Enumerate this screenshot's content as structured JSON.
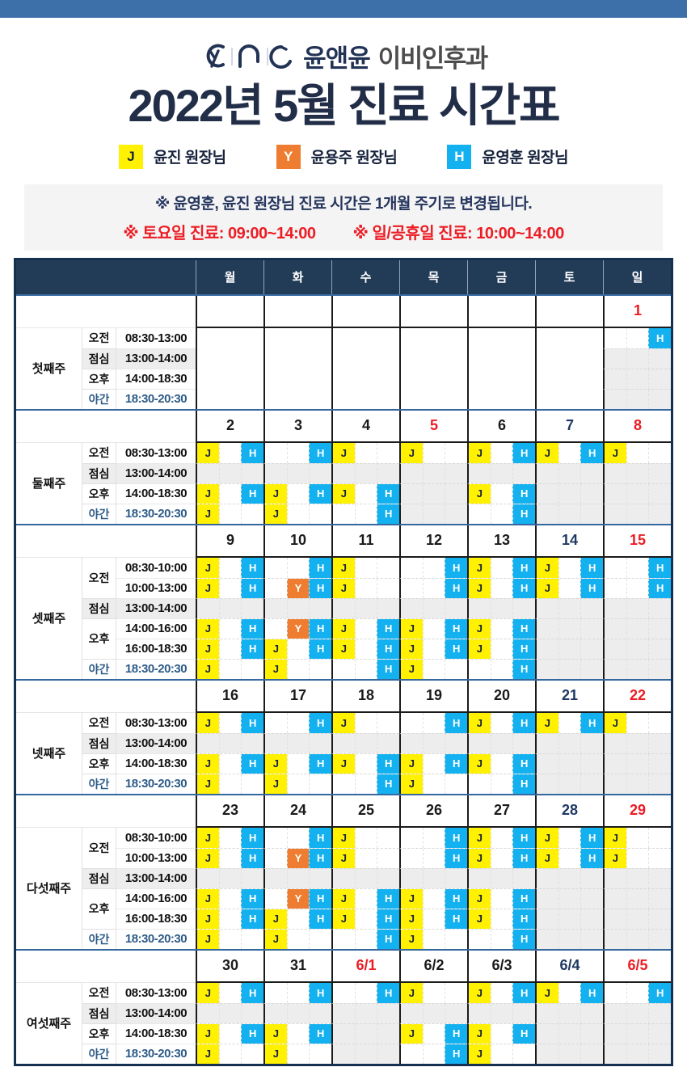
{
  "logo": {
    "name_primary": "윤앤윤",
    "name_secondary": "이비인후과"
  },
  "title": "2022년 5월 진료 시간표",
  "legend": {
    "items": [
      {
        "code": "J",
        "label": "윤진 원장님"
      },
      {
        "code": "Y",
        "label": "윤용주 원장님"
      },
      {
        "code": "H",
        "label": "윤영훈 원장님"
      }
    ]
  },
  "notice": {
    "line1": "※ 윤영훈, 윤진 원장님 진료 시간은 1개월 주기로 변경됩니다.",
    "line2a": "※ 토요일 진료: 09:00~14:00",
    "line2b": "※ 일/공휴일 진료: 10:00~14:00"
  },
  "colors": {
    "accent_bar": "#3d70a8",
    "navy_title": "#222e48",
    "header_bg": "#223c58",
    "badge_j_yellow": "#fff100",
    "badge_y_orange": "#ee7d31",
    "badge_h_blue": "#14b1f0",
    "holiday_red": "#ed1c24",
    "saturday_navy": "#1f3864",
    "closed_gray": "#ededed",
    "night_blue": "#2d5b88"
  },
  "table": {
    "day_headers": [
      "월",
      "화",
      "수",
      "목",
      "금",
      "토",
      "일"
    ],
    "weeks": [
      {
        "name": "첫째주",
        "dates": [
          {
            "t": ""
          },
          {
            "t": ""
          },
          {
            "t": ""
          },
          {
            "t": ""
          },
          {
            "t": ""
          },
          {
            "t": ""
          },
          {
            "t": "1",
            "c": "red"
          }
        ],
        "periods": [
          {
            "label": "오전",
            "rows": [
              {
                "time": "08:30-13:00",
                "cells": [
                  "...",
                  "...",
                  "...",
                  "...",
                  "...",
                  "...",
                  "..H"
                ]
              }
            ]
          },
          {
            "label": "점심",
            "shaded": true,
            "rows": [
              {
                "time": "13:00-14:00",
                "cells": [
                  "...",
                  "...",
                  "...",
                  "...",
                  "...",
                  "...",
                  "xxx"
                ]
              }
            ]
          },
          {
            "label": "오후",
            "rows": [
              {
                "time": "14:00-18:30",
                "cells": [
                  "...",
                  "...",
                  "...",
                  "...",
                  "...",
                  "...",
                  "xxx"
                ]
              }
            ]
          },
          {
            "label": "야간",
            "night": true,
            "rows": [
              {
                "time": "18:30-20:30",
                "cells": [
                  "...",
                  "...",
                  "...",
                  "...",
                  "...",
                  "...",
                  "xxx"
                ]
              }
            ]
          }
        ]
      },
      {
        "name": "둘째주",
        "dates": [
          {
            "t": "2"
          },
          {
            "t": "3"
          },
          {
            "t": "4"
          },
          {
            "t": "5",
            "c": "red"
          },
          {
            "t": "6"
          },
          {
            "t": "7",
            "c": "sat"
          },
          {
            "t": "8",
            "c": "red"
          }
        ],
        "periods": [
          {
            "label": "오전",
            "rows": [
              {
                "time": "08:30-13:00",
                "cells": [
                  "J.H",
                  "..H",
                  "J..",
                  "J..",
                  "J.H",
                  "J.H",
                  "J.."
                ]
              }
            ]
          },
          {
            "label": "점심",
            "shaded": true,
            "rows": [
              {
                "time": "13:00-14:00",
                "cells": [
                  "xxx",
                  "xxx",
                  "xxx",
                  "xxx",
                  "xxx",
                  "xxx",
                  "xxx"
                ]
              }
            ]
          },
          {
            "label": "오후",
            "rows": [
              {
                "time": "14:00-18:30",
                "cells": [
                  "J.H",
                  "J.H",
                  "J.H",
                  "xxx",
                  "J.H",
                  "xxx",
                  "xxx"
                ]
              }
            ]
          },
          {
            "label": "야간",
            "night": true,
            "rows": [
              {
                "time": "18:30-20:30",
                "cells": [
                  "J..",
                  "J..",
                  "..H",
                  "xxx",
                  "..H",
                  "xxx",
                  "xxx"
                ]
              }
            ]
          }
        ]
      },
      {
        "name": "셋째주",
        "dates": [
          {
            "t": "9"
          },
          {
            "t": "10"
          },
          {
            "t": "11"
          },
          {
            "t": "12"
          },
          {
            "t": "13"
          },
          {
            "t": "14",
            "c": "sat"
          },
          {
            "t": "15",
            "c": "red"
          }
        ],
        "periods": [
          {
            "label": "오전",
            "rows": [
              {
                "time": "08:30-10:00",
                "cells": [
                  "J.H",
                  "..H",
                  "J..",
                  "..H",
                  "J.H",
                  "J.H",
                  "..H"
                ]
              },
              {
                "time": "10:00-13:00",
                "cells": [
                  "J.H",
                  ".YH",
                  "J..",
                  "..H",
                  "J.H",
                  "J.H",
                  "..H"
                ]
              }
            ]
          },
          {
            "label": "점심",
            "shaded": true,
            "rows": [
              {
                "time": "13:00-14:00",
                "cells": [
                  "xxx",
                  "xxx",
                  "xxx",
                  "xxx",
                  "xxx",
                  "xxx",
                  "xxx"
                ]
              }
            ]
          },
          {
            "label": "오후",
            "rows": [
              {
                "time": "14:00-16:00",
                "cells": [
                  "J.H",
                  ".YH",
                  "J.H",
                  "J.H",
                  "J.H",
                  "xxx",
                  "xxx"
                ]
              },
              {
                "time": "16:00-18:30",
                "cells": [
                  "J.H",
                  "J.H",
                  "J.H",
                  "J.H",
                  "J.H",
                  "xxx",
                  "xxx"
                ]
              }
            ]
          },
          {
            "label": "야간",
            "night": true,
            "rows": [
              {
                "time": "18:30-20:30",
                "cells": [
                  "J..",
                  "J..",
                  "..H",
                  "J..",
                  "..H",
                  "xxx",
                  "xxx"
                ]
              }
            ]
          }
        ]
      },
      {
        "name": "넷째주",
        "dates": [
          {
            "t": "16"
          },
          {
            "t": "17"
          },
          {
            "t": "18"
          },
          {
            "t": "19"
          },
          {
            "t": "20"
          },
          {
            "t": "21",
            "c": "sat"
          },
          {
            "t": "22",
            "c": "red"
          }
        ],
        "periods": [
          {
            "label": "오전",
            "rows": [
              {
                "time": "08:30-13:00",
                "cells": [
                  "J.H",
                  "..H",
                  "J..",
                  "..H",
                  "J.H",
                  "J.H",
                  "J.."
                ]
              }
            ]
          },
          {
            "label": "점심",
            "shaded": true,
            "rows": [
              {
                "time": "13:00-14:00",
                "cells": [
                  "xxx",
                  "xxx",
                  "xxx",
                  "xxx",
                  "xxx",
                  "xxx",
                  "xxx"
                ]
              }
            ]
          },
          {
            "label": "오후",
            "rows": [
              {
                "time": "14:00-18:30",
                "cells": [
                  "J.H",
                  "J.H",
                  "J.H",
                  "J.H",
                  "J.H",
                  "xxx",
                  "xxx"
                ]
              }
            ]
          },
          {
            "label": "야간",
            "night": true,
            "rows": [
              {
                "time": "18:30-20:30",
                "cells": [
                  "J..",
                  "J..",
                  "..H",
                  "J..",
                  "..H",
                  "xxx",
                  "xxx"
                ]
              }
            ]
          }
        ]
      },
      {
        "name": "다섯째주",
        "dates": [
          {
            "t": "23"
          },
          {
            "t": "24"
          },
          {
            "t": "25"
          },
          {
            "t": "26"
          },
          {
            "t": "27"
          },
          {
            "t": "28",
            "c": "sat"
          },
          {
            "t": "29",
            "c": "red"
          }
        ],
        "periods": [
          {
            "label": "오전",
            "rows": [
              {
                "time": "08:30-10:00",
                "cells": [
                  "J.H",
                  "..H",
                  "J..",
                  "..H",
                  "J.H",
                  "J.H",
                  "J.."
                ]
              },
              {
                "time": "10:00-13:00",
                "cells": [
                  "J.H",
                  ".YH",
                  "J..",
                  "..H",
                  "J.H",
                  "J.H",
                  "J.."
                ]
              }
            ]
          },
          {
            "label": "점심",
            "shaded": true,
            "rows": [
              {
                "time": "13:00-14:00",
                "cells": [
                  "xxx",
                  "xxx",
                  "xxx",
                  "xxx",
                  "xxx",
                  "xxx",
                  "xxx"
                ]
              }
            ]
          },
          {
            "label": "오후",
            "rows": [
              {
                "time": "14:00-16:00",
                "cells": [
                  "J.H",
                  ".YH",
                  "J.H",
                  "J.H",
                  "J.H",
                  "xxx",
                  "xxx"
                ]
              },
              {
                "time": "16:00-18:30",
                "cells": [
                  "J.H",
                  "J.H",
                  "J.H",
                  "J.H",
                  "J.H",
                  "xxx",
                  "xxx"
                ]
              }
            ]
          },
          {
            "label": "야간",
            "night": true,
            "rows": [
              {
                "time": "18:30-20:30",
                "cells": [
                  "J..",
                  "J..",
                  "..H",
                  "J..",
                  "..H",
                  "xxx",
                  "xxx"
                ]
              }
            ]
          }
        ]
      },
      {
        "name": "여섯째주",
        "dates": [
          {
            "t": "30"
          },
          {
            "t": "31"
          },
          {
            "t": "6/1",
            "c": "red"
          },
          {
            "t": "6/2"
          },
          {
            "t": "6/3"
          },
          {
            "t": "6/4",
            "c": "sat"
          },
          {
            "t": "6/5",
            "c": "red"
          }
        ],
        "periods": [
          {
            "label": "오전",
            "rows": [
              {
                "time": "08:30-13:00",
                "cells": [
                  "J.H",
                  "..H",
                  "..H",
                  "J..",
                  "J.H",
                  "J.H",
                  "..H"
                ]
              }
            ]
          },
          {
            "label": "점심",
            "shaded": true,
            "rows": [
              {
                "time": "13:00-14:00",
                "cells": [
                  "xxx",
                  "xxx",
                  "xxx",
                  "xxx",
                  "xxx",
                  "xxx",
                  "xxx"
                ]
              }
            ]
          },
          {
            "label": "오후",
            "rows": [
              {
                "time": "14:00-18:30",
                "cells": [
                  "J.H",
                  "J.H",
                  "xxx",
                  "J.H",
                  "J.H",
                  "xxx",
                  "xxx"
                ]
              }
            ]
          },
          {
            "label": "야간",
            "night": true,
            "rows": [
              {
                "time": "18:30-20:30",
                "cells": [
                  "J..",
                  "J..",
                  "xxx",
                  "..H",
                  "J..",
                  "xxx",
                  "xxx"
                ]
              }
            ]
          }
        ]
      }
    ]
  }
}
